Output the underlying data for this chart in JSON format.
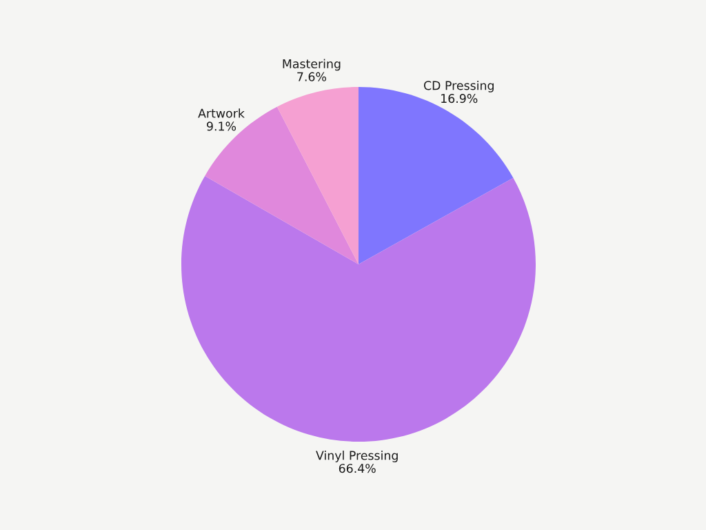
{
  "chart_data": {
    "type": "pie",
    "categories": [
      "CD Pressing",
      "Vinyl Pressing",
      "Artwork",
      "Mastering"
    ],
    "values": [
      16.9,
      66.4,
      9.1,
      7.6
    ],
    "value_labels": [
      "16.9%",
      "66.4%",
      "9.1%",
      "7.6%"
    ],
    "colors": [
      "#7f76fe",
      "#bb78ec",
      "#e088dc",
      "#f5a0d2"
    ]
  }
}
